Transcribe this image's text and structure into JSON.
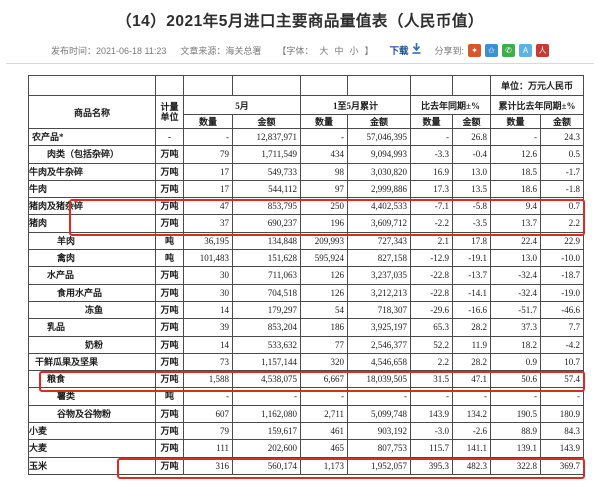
{
  "page": {
    "title": "（14）2021年5月进口主要商品量值表（人民币值）",
    "meta": {
      "publish": "发布时间：2021-06-18 11:23",
      "source": "文章来源：海关总署",
      "font_label_open": "【字体：",
      "font_sizes": [
        "大",
        "中",
        "小"
      ],
      "font_label_close": "】",
      "download_label": "下载",
      "share_label": "分享到:"
    },
    "share_icons": [
      {
        "name": "sina-weibo",
        "color": "#d9552b",
        "glyph": "✦"
      },
      {
        "name": "qzone",
        "color": "#3d90d0",
        "glyph": "✩"
      },
      {
        "name": "wechat",
        "color": "#3fae49",
        "glyph": "✆"
      },
      {
        "name": "tencent-weibo",
        "color": "#5fb1e3",
        "glyph": "A"
      },
      {
        "name": "people-weibo",
        "color": "#c63b33",
        "glyph": "人"
      }
    ]
  },
  "table": {
    "unit_note": "单位：万元人民币",
    "highlight_color": "#dd2a22",
    "headers": {
      "commodity": "商品名称",
      "measure_line1": "计量",
      "measure_line2": "单位",
      "may": "5月",
      "jan_may": "1至5月累计",
      "yoy": "比去年同期±%",
      "yoy_cum": "累计比去年同期±%",
      "qty": "数量",
      "amt": "金额"
    },
    "rows": [
      {
        "name": "农产品*",
        "align": "lv0",
        "unit": "-",
        "mq": "-",
        "ma": "12,837,971",
        "cq": "-",
        "ca": "57,046,395",
        "yq": "-",
        "ya": "26.8",
        "cyq": "-",
        "cya": "24.3"
      },
      {
        "name": "肉类（包括杂碎）",
        "align": "lv2",
        "unit": "万吨",
        "mq": "79",
        "ma": "1,711,549",
        "cq": "434",
        "ca": "9,094,993",
        "yq": "-3.3",
        "ya": "-0.4",
        "cyq": "12.6",
        "cya": "0.5"
      },
      {
        "name": "牛肉及牛杂碎",
        "align": "right",
        "unit": "万吨",
        "mq": "17",
        "ma": "549,733",
        "cq": "98",
        "ca": "3,030,820",
        "yq": "16.9",
        "ya": "13.0",
        "cyq": "18.5",
        "cya": "-1.7"
      },
      {
        "name": "牛肉",
        "align": "right",
        "unit": "万吨",
        "mq": "17",
        "ma": "544,112",
        "cq": "97",
        "ca": "2,999,886",
        "yq": "17.3",
        "ya": "13.5",
        "cyq": "18.6",
        "cya": "-1.8"
      },
      {
        "name": "猪肉及猪杂碎",
        "align": "right",
        "unit": "万吨",
        "mq": "47",
        "ma": "853,795",
        "cq": "250",
        "ca": "4,402,533",
        "yq": "-7.1",
        "ya": "-5.8",
        "cyq": "9.4",
        "cya": "0.7"
      },
      {
        "name": "猪肉",
        "align": "right",
        "unit": "万吨",
        "mq": "37",
        "ma": "690,237",
        "cq": "196",
        "ca": "3,609,712",
        "yq": "-2.2",
        "ya": "-3.5",
        "cyq": "13.7",
        "cya": "2.2"
      },
      {
        "name": "羊肉",
        "align": "lv3",
        "unit": "吨",
        "mq": "36,195",
        "ma": "134,848",
        "cq": "209,993",
        "ca": "727,343",
        "yq": "2.1",
        "ya": "17.8",
        "cyq": "22.4",
        "cya": "22.9"
      },
      {
        "name": "禽肉",
        "align": "lv3",
        "unit": "吨",
        "mq": "101,483",
        "ma": "151,628",
        "cq": "595,924",
        "ca": "827,158",
        "yq": "-12.9",
        "ya": "-19.1",
        "cyq": "13.0",
        "cya": "-10.0"
      },
      {
        "name": "水产品",
        "align": "lv2",
        "unit": "万吨",
        "mq": "30",
        "ma": "711,063",
        "cq": "126",
        "ca": "3,237,035",
        "yq": "-22.8",
        "ya": "-13.7",
        "cyq": "-32.4",
        "cya": "-18.7"
      },
      {
        "name": "食用水产品",
        "align": "lv3",
        "unit": "万吨",
        "mq": "30",
        "ma": "704,518",
        "cq": "126",
        "ca": "3,212,213",
        "yq": "-22.8",
        "ya": "-14.1",
        "cyq": "-32.4",
        "cya": "-19.0"
      },
      {
        "name": "冻鱼",
        "align": "lv4",
        "unit": "万吨",
        "mq": "14",
        "ma": "179,297",
        "cq": "54",
        "ca": "718,307",
        "yq": "-29.6",
        "ya": "-16.6",
        "cyq": "-51.7",
        "cya": "-46.6"
      },
      {
        "name": "乳品",
        "align": "lv2",
        "unit": "万吨",
        "mq": "39",
        "ma": "853,204",
        "cq": "186",
        "ca": "3,925,197",
        "yq": "65.3",
        "ya": "28.2",
        "cyq": "37.3",
        "cya": "7.7"
      },
      {
        "name": "奶粉",
        "align": "lv4",
        "unit": "万吨",
        "mq": "14",
        "ma": "533,632",
        "cq": "77",
        "ca": "2,546,377",
        "yq": "52.2",
        "ya": "11.9",
        "cyq": "18.2",
        "cya": "-4.2"
      },
      {
        "name": "干鲜瓜果及坚果",
        "align": "lv1",
        "unit": "万吨",
        "mq": "73",
        "ma": "1,157,144",
        "cq": "320",
        "ca": "4,546,658",
        "yq": "2.2",
        "ya": "28.2",
        "cyq": "0.9",
        "cya": "10.7"
      },
      {
        "name": "粮食",
        "align": "lv2",
        "unit": "万吨",
        "mq": "1,588",
        "ma": "4,538,075",
        "cq": "6,667",
        "ca": "18,039,505",
        "yq": "31.5",
        "ya": "47.1",
        "cyq": "50.6",
        "cya": "57.4"
      },
      {
        "name": "薯类",
        "align": "lv3",
        "unit": "吨",
        "mq": "-",
        "ma": "-",
        "cq": "-",
        "ca": "-",
        "yq": "-",
        "ya": "-",
        "cyq": "-",
        "cya": "-"
      },
      {
        "name": "谷物及谷物粉",
        "align": "lv3",
        "unit": "万吨",
        "mq": "607",
        "ma": "1,162,080",
        "cq": "2,711",
        "ca": "5,099,748",
        "yq": "143.9",
        "ya": "134.2",
        "cyq": "190.5",
        "cya": "180.9"
      },
      {
        "name": "小麦",
        "align": "right",
        "unit": "万吨",
        "mq": "79",
        "ma": "159,617",
        "cq": "461",
        "ca": "903,192",
        "yq": "-3.0",
        "ya": "-2.6",
        "cyq": "88.9",
        "cya": "84.3"
      },
      {
        "name": "大麦",
        "align": "right",
        "unit": "万吨",
        "mq": "111",
        "ma": "202,600",
        "cq": "465",
        "ca": "807,753",
        "yq": "115.7",
        "ya": "141.1",
        "cyq": "139.1",
        "cya": "143.9"
      },
      {
        "name": "玉米",
        "align": "right",
        "unit": "万吨",
        "mq": "316",
        "ma": "560,174",
        "cq": "1,173",
        "ca": "1,952,057",
        "yq": "395.3",
        "ya": "482.3",
        "cyq": "322.8",
        "cya": "369.7"
      }
    ]
  }
}
